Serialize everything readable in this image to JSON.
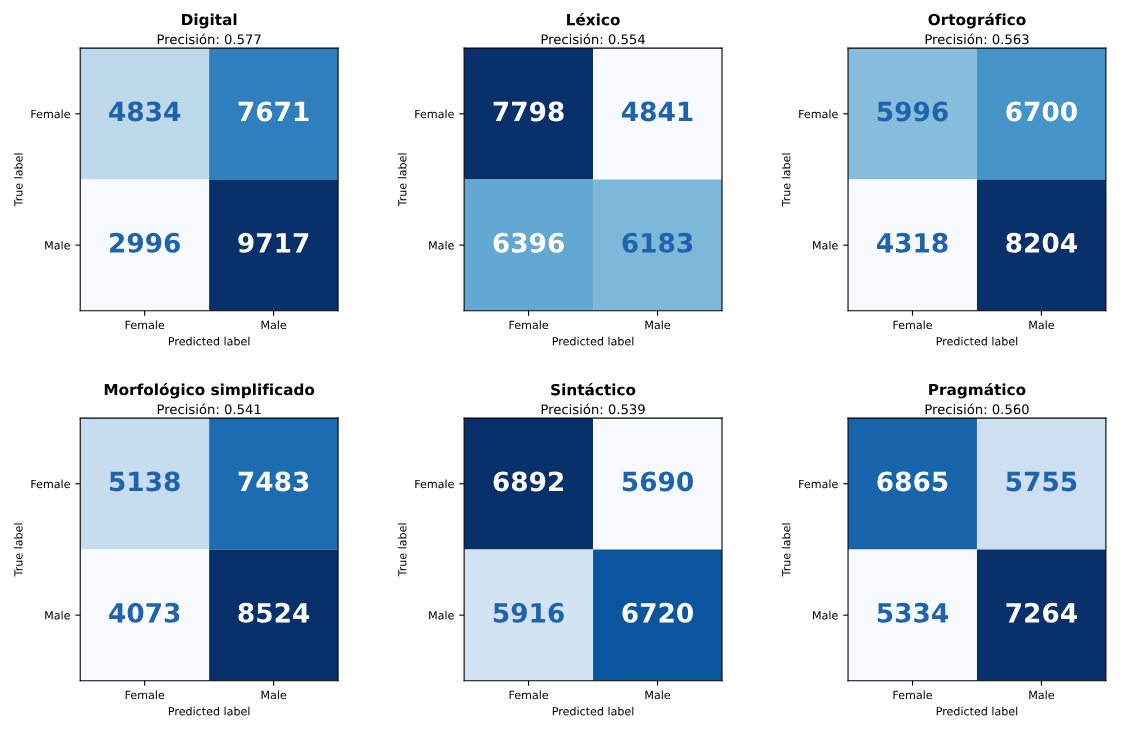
{
  "chart_data": [
    {
      "type": "heatmap",
      "title": "Digital",
      "subtitle": "Precisión: 0.577",
      "xlabel": "Predicted label",
      "ylabel": "True label",
      "categories": [
        "Female",
        "Male"
      ],
      "y_categories": [
        "Female",
        "Male"
      ],
      "cells": [
        [
          4834,
          7671
        ],
        [
          2996,
          9717
        ]
      ],
      "data_labels": true
    },
    {
      "type": "heatmap",
      "title": "Léxico",
      "subtitle": "Precisión: 0.554",
      "xlabel": "Predicted label",
      "ylabel": "True label",
      "categories": [
        "Female",
        "Male"
      ],
      "y_categories": [
        "Female",
        "Male"
      ],
      "cells": [
        [
          7798,
          4841
        ],
        [
          6396,
          6183
        ]
      ],
      "data_labels": true
    },
    {
      "type": "heatmap",
      "title": "Ortográfico",
      "subtitle": "Precisión: 0.563",
      "xlabel": "Predicted label",
      "ylabel": "True label",
      "categories": [
        "Female",
        "Male"
      ],
      "y_categories": [
        "Female",
        "Male"
      ],
      "cells": [
        [
          5996,
          6700
        ],
        [
          4318,
          8204
        ]
      ],
      "data_labels": true
    },
    {
      "type": "heatmap",
      "title": "Morfológico simplificado",
      "subtitle": "Precisión: 0.541",
      "xlabel": "Predicted label",
      "ylabel": "True label",
      "categories": [
        "Female",
        "Male"
      ],
      "y_categories": [
        "Female",
        "Male"
      ],
      "cells": [
        [
          5138,
          7483
        ],
        [
          4073,
          8524
        ]
      ],
      "data_labels": true
    },
    {
      "type": "heatmap",
      "title": "Sintáctico",
      "subtitle": "Precisión: 0.539",
      "xlabel": "Predicted label",
      "ylabel": "True label",
      "categories": [
        "Female",
        "Male"
      ],
      "y_categories": [
        "Female",
        "Male"
      ],
      "cells": [
        [
          6892,
          5690
        ],
        [
          5916,
          6720
        ]
      ],
      "data_labels": true
    },
    {
      "type": "heatmap",
      "title": "Pragmático",
      "subtitle": "Precisión: 0.560",
      "xlabel": "Predicted label",
      "ylabel": "True label",
      "categories": [
        "Female",
        "Male"
      ],
      "y_categories": [
        "Female",
        "Male"
      ],
      "cells": [
        [
          6865,
          5755
        ],
        [
          5334,
          7264
        ]
      ],
      "data_labels": true
    }
  ]
}
